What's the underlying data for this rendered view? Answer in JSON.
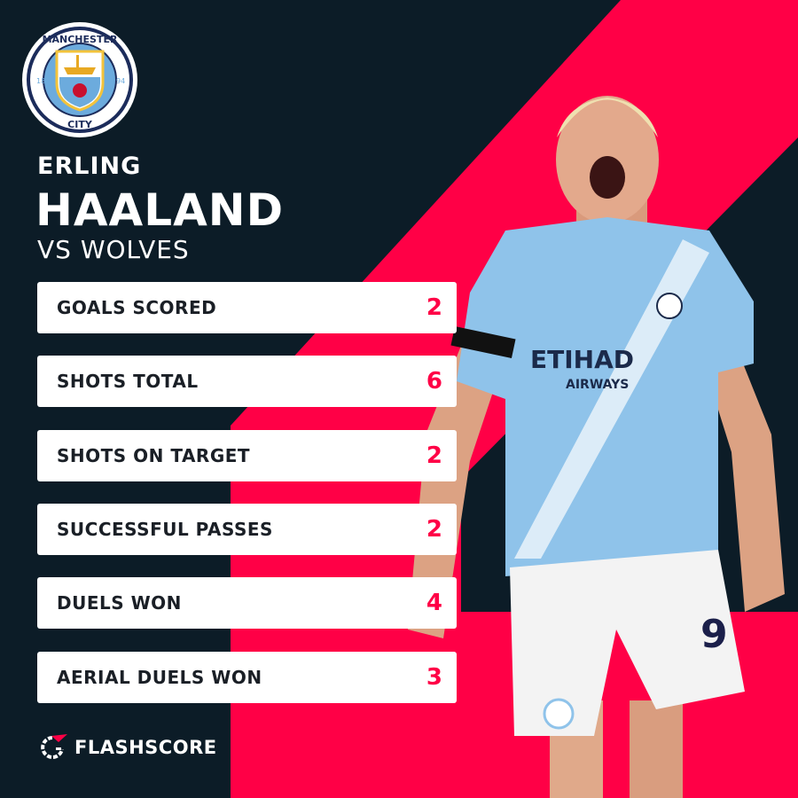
{
  "club": {
    "name_top": "MANCHESTER",
    "name_bottom": "CITY",
    "year_left": "18",
    "year_right": "94"
  },
  "player": {
    "first_name": "ERLING",
    "last_name": "HAALAND",
    "opponent": "VS WOLVES",
    "shirt_sponsor": "ETIHAD",
    "shirt_sponsor_sub": "AIRWAYS",
    "shirt_number": "9"
  },
  "stats": [
    {
      "label": "GOALS SCORED",
      "value": "2"
    },
    {
      "label": "SHOTS TOTAL",
      "value": "6"
    },
    {
      "label": "SHOTS ON TARGET",
      "value": "2"
    },
    {
      "label": "SUCCESSFUL PASSES",
      "value": "2"
    },
    {
      "label": "DUELS WON",
      "value": "4"
    },
    {
      "label": "AERIAL DUELS WON",
      "value": "3"
    }
  ],
  "brand": {
    "name": "FLASHSCORE"
  },
  "colors": {
    "background": "#0c1c27",
    "accent": "#ff0046",
    "card": "#ffffff",
    "shirt": "#8fc3ea"
  }
}
